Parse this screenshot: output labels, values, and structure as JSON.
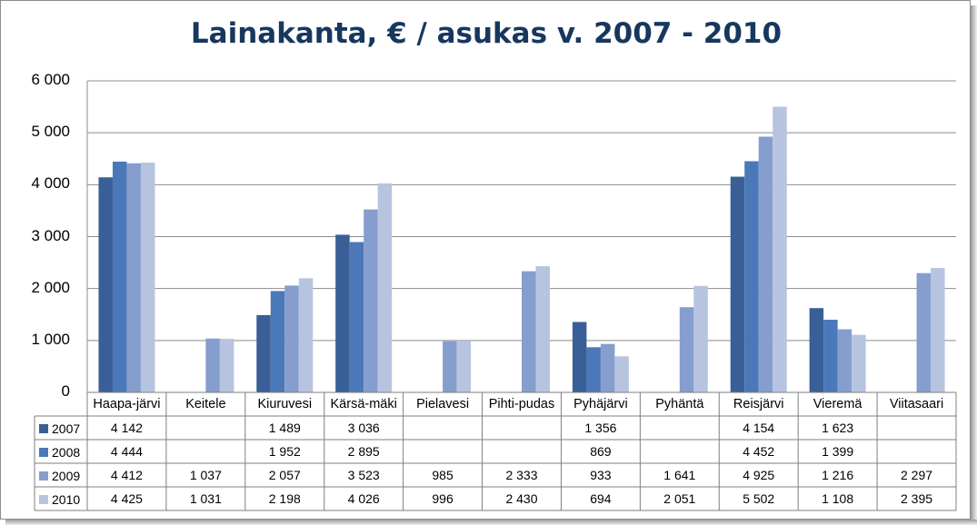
{
  "chart_data": {
    "type": "bar",
    "title": "Lainakanta, € / asukas v. 2007 - 2010",
    "categories": [
      "Haapa-järvi",
      "Keitele",
      "Kiuruvesi",
      "Kärsä-mäki",
      "Pielavesi",
      "Pihti-pudas",
      "Pyhäjärvi",
      "Pyhäntä",
      "Reisjärvi",
      "Vieremä",
      "Viitasaari"
    ],
    "series": [
      {
        "name": "2007",
        "color": "#3a5f96",
        "values": [
          4142,
          null,
          1489,
          3036,
          null,
          null,
          1356,
          null,
          4154,
          1623,
          null
        ]
      },
      {
        "name": "2008",
        "color": "#4b78b8",
        "values": [
          4444,
          null,
          1952,
          2895,
          null,
          null,
          869,
          null,
          4452,
          1399,
          null
        ]
      },
      {
        "name": "2009",
        "color": "#869ece",
        "values": [
          4412,
          1037,
          2057,
          3523,
          985,
          2333,
          933,
          1641,
          4925,
          1216,
          2297
        ]
      },
      {
        "name": "2010",
        "color": "#b7c4e0",
        "values": [
          4425,
          1031,
          2198,
          4026,
          996,
          2430,
          694,
          2051,
          5502,
          1108,
          2395
        ]
      }
    ],
    "table_values": [
      [
        "4 142",
        "",
        "1 489",
        "3 036",
        "",
        "",
        "1 356",
        "",
        "4 154",
        "1 623",
        ""
      ],
      [
        "4 444",
        "",
        "1 952",
        "2 895",
        "",
        "",
        "869",
        "",
        "4 452",
        "1 399",
        ""
      ],
      [
        "4 412",
        "1 037",
        "2 057",
        "3 523",
        "985",
        "2 333",
        "933",
        "1 641",
        "4 925",
        "1 216",
        "2 297"
      ],
      [
        "4 425",
        "1 031",
        "2 198",
        "4 026",
        "996",
        "2 430",
        "694",
        "2 051",
        "5 502",
        "1 108",
        "2 395"
      ]
    ],
    "yticks": [
      "0",
      "1 000",
      "2 000",
      "3 000",
      "4 000",
      "5 000",
      "6 000"
    ],
    "ylim": [
      0,
      6000
    ],
    "grid": true,
    "legend": "data-table"
  }
}
